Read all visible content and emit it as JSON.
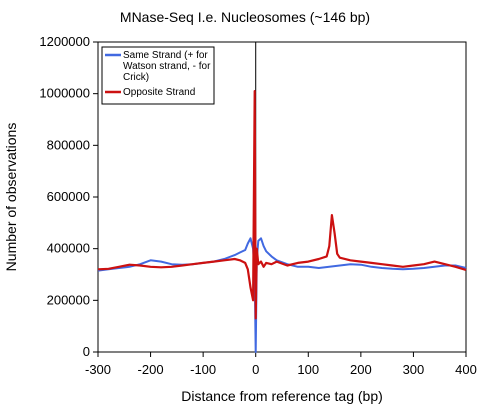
{
  "chart_data": {
    "type": "line",
    "title": "MNase-Seq I.e. Nucleosomes (~146 bp)",
    "xlabel": "Distance from reference tag (bp)",
    "ylabel": "Number of observations",
    "xlim": [
      -300,
      400
    ],
    "ylim": [
      0,
      1200000
    ],
    "x_ticks": [
      -300,
      -200,
      -100,
      0,
      100,
      200,
      300,
      400
    ],
    "y_ticks": [
      0,
      200000,
      400000,
      600000,
      800000,
      1000000,
      1200000
    ],
    "x_tick_labels": [
      "-300",
      "-200",
      "-100",
      "0",
      "100",
      "200",
      "300",
      "400"
    ],
    "y_tick_labels": [
      "0",
      "200000",
      "400000",
      "600000",
      "800000",
      "1000000",
      "1200000"
    ],
    "grid": false,
    "legend_position": "top-left",
    "legend": [
      "Same Strand (+ for Watson strand, - for Crick)",
      "Opposite Strand"
    ],
    "legend_lines": [
      [
        "Same Strand (+ for",
        "Watson strand, - for",
        "Crick)"
      ],
      [
        "Opposite Strand"
      ]
    ],
    "series": [
      {
        "name": "Same Strand (+ for Watson strand, - for Crick)",
        "color": "#4169e1",
        "x": [
          -300,
          -280,
          -260,
          -240,
          -220,
          -200,
          -180,
          -160,
          -140,
          -120,
          -100,
          -80,
          -60,
          -40,
          -30,
          -20,
          -15,
          -10,
          -5,
          -2,
          0,
          2,
          5,
          10,
          15,
          20,
          30,
          40,
          60,
          80,
          100,
          120,
          140,
          160,
          180,
          200,
          220,
          240,
          260,
          280,
          300,
          320,
          340,
          360,
          380,
          400
        ],
        "y": [
          315000,
          320000,
          325000,
          330000,
          340000,
          355000,
          350000,
          340000,
          338000,
          340000,
          345000,
          350000,
          360000,
          375000,
          385000,
          395000,
          420000,
          440000,
          400000,
          300000,
          0,
          360000,
          430000,
          440000,
          410000,
          390000,
          370000,
          355000,
          340000,
          330000,
          330000,
          325000,
          330000,
          335000,
          340000,
          338000,
          330000,
          325000,
          322000,
          320000,
          322000,
          325000,
          330000,
          335000,
          335000,
          325000
        ]
      },
      {
        "name": "Opposite Strand",
        "color": "#cc1111",
        "x": [
          -300,
          -280,
          -260,
          -240,
          -220,
          -200,
          -180,
          -160,
          -140,
          -120,
          -100,
          -80,
          -60,
          -40,
          -30,
          -20,
          -15,
          -10,
          -5,
          -2,
          0,
          2,
          5,
          10,
          15,
          20,
          30,
          40,
          60,
          80,
          100,
          120,
          135,
          140,
          145,
          150,
          155,
          160,
          180,
          200,
          220,
          240,
          260,
          280,
          300,
          320,
          340,
          360,
          380,
          400
        ],
        "y": [
          320000,
          322000,
          330000,
          338000,
          335000,
          330000,
          328000,
          330000,
          335000,
          340000,
          345000,
          350000,
          355000,
          360000,
          355000,
          345000,
          320000,
          250000,
          200000,
          1010000,
          130000,
          400000,
          340000,
          350000,
          330000,
          345000,
          340000,
          350000,
          335000,
          345000,
          350000,
          360000,
          370000,
          410000,
          530000,
          460000,
          380000,
          365000,
          355000,
          350000,
          345000,
          340000,
          335000,
          330000,
          335000,
          340000,
          350000,
          340000,
          330000,
          318000
        ]
      }
    ]
  }
}
